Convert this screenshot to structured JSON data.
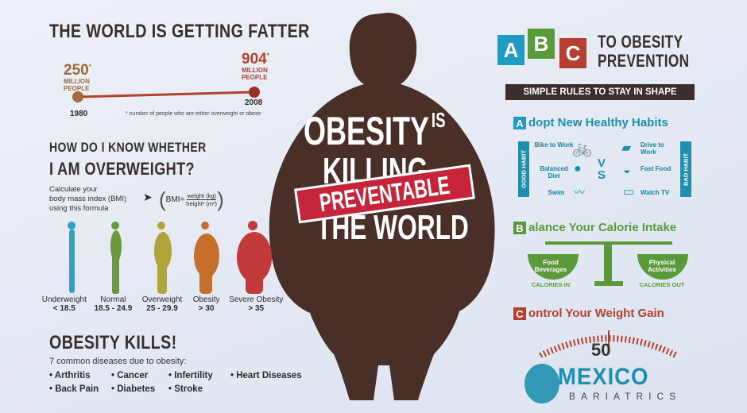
{
  "left": {
    "title": "THE WORLD IS GETTING FATTER",
    "stat1": {
      "value": "250",
      "unit": "MILLION",
      "unit2": "PEOPLE",
      "year": "1980"
    },
    "stat2": {
      "value": "904",
      "unit": "MILLION",
      "unit2": "PEOPLE",
      "year": "2008"
    },
    "footnote": "* number of people who are either overweight or obese",
    "question1": "HOW DO I KNOW WHETHER",
    "question2": "I AM OVERWEIGHT?",
    "calc1": "Calculate your",
    "calc2": "body mass index (BMI)",
    "calc3": "using this formula",
    "bmi_label": "BMI=",
    "bmi_num": "weight (kg)",
    "bmi_den": "height² (m²)",
    "figures": [
      {
        "name": "Underweight",
        "range": "< 18.5",
        "color": "#2fa3c4"
      },
      {
        "name": "Normal",
        "range": "18.5 - 24.9",
        "color": "#6a9a3a"
      },
      {
        "name": "Overweight",
        "range": "25 - 29.9",
        "color": "#b1a43a"
      },
      {
        "name": "Obesity",
        "range": "> 30",
        "color": "#c7702e"
      },
      {
        "name": "Severe Obesity",
        "range": "> 35",
        "color": "#c23a3a"
      }
    ],
    "kills_title": "OBESITY KILLS!",
    "kills_sub": "7 common diseases due to obesity:",
    "diseases": [
      "• Arthritis",
      "• Cancer",
      "• Infertility",
      "• Heart Diseases",
      "• Back Pain",
      "• Diabetes",
      "• Stroke"
    ]
  },
  "center": {
    "line1": "OBESITY",
    "is": "IS",
    "line2": "KILLING",
    "line3": "THE WORLD",
    "stamp": "PREVENTABLE"
  },
  "right": {
    "abc": [
      "A",
      "B",
      "C"
    ],
    "title1": "TO OBESITY",
    "title2": "PREVENTION",
    "banner": "SIMPLE RULES TO STAY IN SHAPE",
    "a_letter": "A",
    "a_text": "dopt New Healthy Habits",
    "good_habit": "GOOD HABIT",
    "bad_habit": "BAD HABIT",
    "vs": "VS",
    "good": [
      "Bike to Work",
      "Balanced Diet",
      "Swim"
    ],
    "bad": [
      "Drive to Work",
      "Fast Food",
      "Watch TV"
    ],
    "b_letter": "B",
    "b_text": "alance Your Calorie Intake",
    "food": "Food Beverages",
    "calories_in": "CALORIES IN",
    "physical": "Physical Activities",
    "calories_out": "CALORIES OUT",
    "c_letter": "C",
    "c_text": "ontrol Your Weight Gain",
    "gauge": "50",
    "logo1": "MEXICO",
    "logo2": "BARIATRICS"
  },
  "colors": {
    "teal": "#1f8fae",
    "green": "#5a9a3a",
    "red": "#b5402f",
    "dark": "#3a2f2c",
    "silhouette": "#4a2f28"
  }
}
